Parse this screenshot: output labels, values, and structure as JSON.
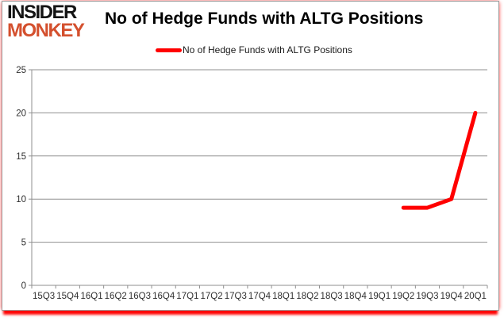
{
  "brand": {
    "name": "Insider Monkey",
    "line1": "INSIDER",
    "line2": "MONKEY"
  },
  "title": "No of Hedge Funds with ALTG Positions",
  "legend": {
    "label": "No of Hedge Funds with ALTG Positions"
  },
  "colors": {
    "series": "#ff0000",
    "grid": "#8f8f8f",
    "axis": "#8f8f8f",
    "tick_text": "#303030",
    "title_text": "#000000",
    "brand_primary": "#141414",
    "brand_accent": "#d4502e"
  },
  "chart_data": {
    "type": "line",
    "title": "No of Hedge Funds with ALTG Positions",
    "xlabel": "",
    "ylabel": "",
    "categories": [
      "15Q3",
      "15Q4",
      "16Q1",
      "16Q2",
      "16Q3",
      "16Q4",
      "17Q1",
      "17Q2",
      "17Q3",
      "17Q4",
      "18Q1",
      "18Q2",
      "18Q3",
      "18Q4",
      "19Q1",
      "19Q2",
      "19Q3",
      "19Q4",
      "20Q1"
    ],
    "series": [
      {
        "name": "No of Hedge Funds with ALTG Positions",
        "color": "#ff0000",
        "values": [
          null,
          null,
          null,
          null,
          null,
          null,
          null,
          null,
          null,
          null,
          null,
          null,
          null,
          null,
          null,
          9,
          9,
          10,
          20
        ]
      }
    ],
    "ylim": [
      0,
      25
    ],
    "yticks": [
      0,
      5,
      10,
      15,
      20,
      25
    ],
    "grid": true,
    "legend_position": "top"
  }
}
